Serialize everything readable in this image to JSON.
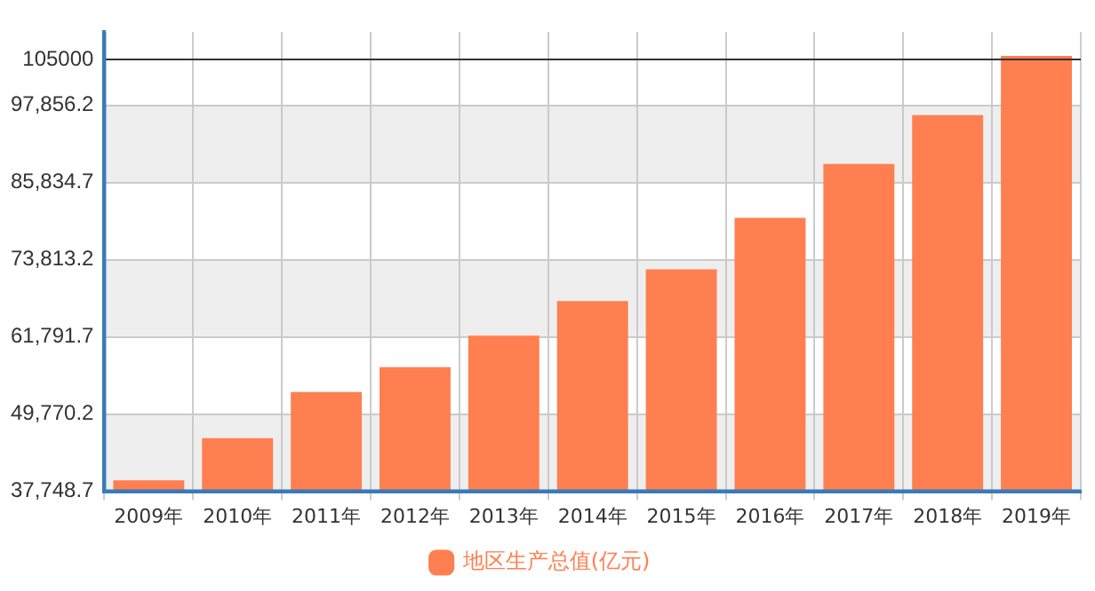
{
  "chart_data": {
    "type": "bar",
    "categories": [
      "2009年",
      "2010年",
      "2011年",
      "2012年",
      "2013年",
      "2014年",
      "2015年",
      "2016年",
      "2017年",
      "2018年",
      "2019年"
    ],
    "series": [
      {
        "name": "地区生产总值(亿元)",
        "color": "#ff7f50",
        "values": [
          39466,
          46013,
          53203,
          57067,
          62003,
          67369,
          72306,
          80355,
          88726,
          96346,
          105575
        ]
      }
    ],
    "ylim": [
      37748.7,
      109300
    ],
    "yticks": [
      {
        "value": 37748.7,
        "label": "37,748.7"
      },
      {
        "value": 49770.2,
        "label": "49,770.2"
      },
      {
        "value": 61791.7,
        "label": "61,791.7"
      },
      {
        "value": 73813.2,
        "label": "73,813.2"
      },
      {
        "value": 85834.7,
        "label": "85,834.7"
      },
      {
        "value": 97856.2,
        "label": "97,856.2"
      }
    ],
    "ref_lines": [
      {
        "axis": "y",
        "value": 105000,
        "label": "105000",
        "color": "#333333"
      }
    ],
    "grid": true,
    "legend": "bottom"
  }
}
